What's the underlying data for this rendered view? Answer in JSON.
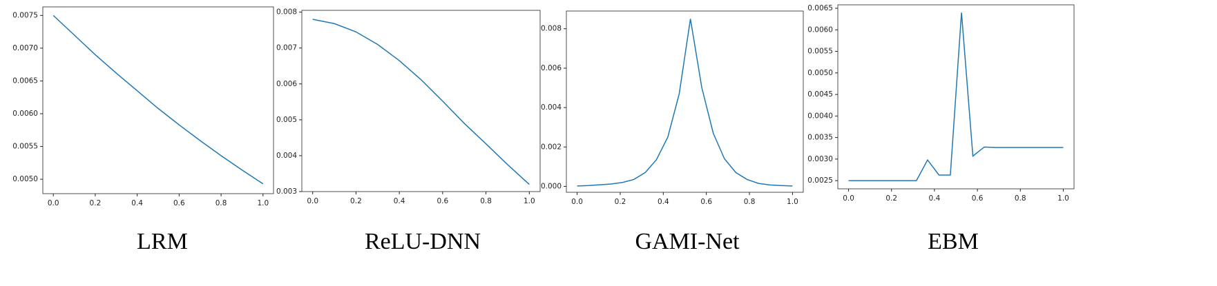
{
  "chart_data": [
    {
      "type": "line",
      "title": "LRM",
      "x": [
        0,
        0.1,
        0.2,
        0.3,
        0.4,
        0.5,
        0.6,
        0.7,
        0.8,
        0.9,
        1
      ],
      "series": [
        {
          "color": "#1f77b4",
          "values": [
            0.0075,
            0.0072,
            0.0069,
            0.00662,
            0.00635,
            0.00608,
            0.00583,
            0.00559,
            0.00536,
            0.00514,
            0.00493
          ]
        }
      ],
      "xlim": [
        -0.05,
        1.05
      ],
      "ylim": [
        0.00478,
        0.00763
      ],
      "xticks": [
        {
          "value": 0,
          "label": "0.0"
        },
        0.2,
        0.4,
        0.6,
        0.8,
        {
          "value": 1,
          "label": "1.0"
        }
      ],
      "yticks": [
        {
          "value": 0.005,
          "label": "0.0050"
        },
        0.0055,
        {
          "value": 0.006,
          "label": "0.0060"
        },
        0.0065,
        {
          "value": 0.007,
          "label": "0.0070"
        },
        0.0075
      ]
    },
    {
      "type": "line",
      "title": "ReLU-DNN",
      "x": [
        0,
        0.1,
        0.2,
        0.3,
        0.4,
        0.5,
        0.6,
        0.7,
        0.8,
        0.9,
        1
      ],
      "series": [
        {
          "color": "#1f77b4",
          "values": [
            0.0078,
            0.00768,
            0.00745,
            0.0071,
            0.00665,
            0.00612,
            0.00552,
            0.0049,
            0.00433,
            0.00375,
            0.0032
          ]
        }
      ],
      "xlim": [
        -0.05,
        1.05
      ],
      "ylim": [
        0.003,
        0.00805
      ],
      "xticks": [
        {
          "value": 0,
          "label": "0.0"
        },
        0.2,
        0.4,
        0.6,
        0.8,
        {
          "value": 1,
          "label": "1.0"
        }
      ],
      "yticks": [
        0.003,
        0.004,
        0.005,
        0.006,
        0.007,
        0.008
      ]
    },
    {
      "type": "line",
      "title": "GAMI-Net",
      "x": [
        0,
        0.053,
        0.105,
        0.158,
        0.211,
        0.263,
        0.316,
        0.368,
        0.421,
        0.474,
        0.526,
        0.579,
        0.632,
        0.684,
        0.737,
        0.789,
        0.842,
        0.895,
        0.947,
        1
      ],
      "series": [
        {
          "color": "#1f77b4",
          "values": [
            2e-05,
            4e-05,
            8e-05,
            0.00012,
            0.0002,
            0.00035,
            0.0007,
            0.00135,
            0.0025,
            0.0047,
            0.0085,
            0.005,
            0.0027,
            0.0014,
            0.0007,
            0.00035,
            0.00015,
            7e-05,
            4e-05,
            2e-05
          ]
        }
      ],
      "xlim": [
        -0.05,
        1.05
      ],
      "ylim": [
        -0.0003,
        0.0089
      ],
      "xticks": [
        {
          "value": 0,
          "label": "0.0"
        },
        0.2,
        0.4,
        0.6,
        0.8,
        {
          "value": 1,
          "label": "1.0"
        }
      ],
      "yticks": [
        {
          "value": 0,
          "label": "0.000"
        },
        0.002,
        0.004,
        0.006,
        0.008
      ]
    },
    {
      "type": "line",
      "title": "EBM",
      "x": [
        0,
        0.053,
        0.105,
        0.158,
        0.211,
        0.263,
        0.316,
        0.368,
        0.421,
        0.474,
        0.526,
        0.579,
        0.632,
        0.684,
        0.737,
        0.789,
        0.842,
        0.895,
        0.947,
        1
      ],
      "series": [
        {
          "color": "#1f77b4",
          "values": [
            0.0025,
            0.0025,
            0.0025,
            0.0025,
            0.0025,
            0.0025,
            0.0025,
            0.00298,
            0.00263,
            0.00263,
            0.0064,
            0.00307,
            0.00328,
            0.00327,
            0.00327,
            0.00327,
            0.00327,
            0.00327,
            0.00327,
            0.00327
          ]
        }
      ],
      "xlim": [
        -0.05,
        1.05
      ],
      "ylim": [
        0.00231,
        0.00658
      ],
      "xticks": [
        {
          "value": 0,
          "label": "0.0"
        },
        0.2,
        0.4,
        0.6,
        0.8,
        {
          "value": 1,
          "label": "1.0"
        }
      ],
      "yticks": [
        0.0025,
        {
          "value": 0.003,
          "label": "0.0030"
        },
        0.0035,
        {
          "value": 0.004,
          "label": "0.0040"
        },
        0.0045,
        {
          "value": 0.005,
          "label": "0.0050"
        },
        0.0055,
        {
          "value": 0.006,
          "label": "0.0060"
        },
        0.0065
      ]
    }
  ]
}
